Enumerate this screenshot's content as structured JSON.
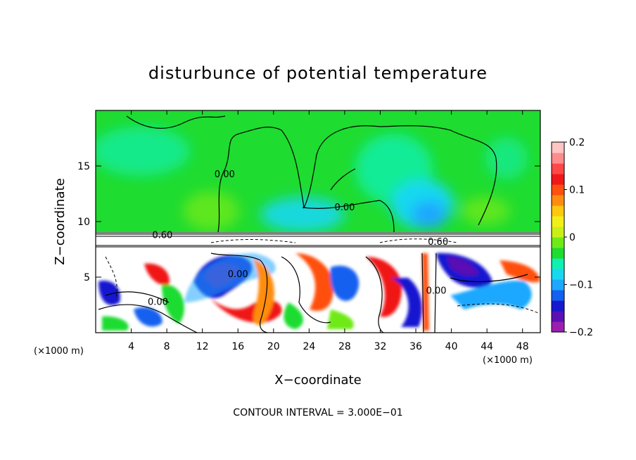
{
  "chart_data": {
    "type": "heatmap",
    "title": "disturbunce of potential temperature",
    "xlabel": "X−coordinate",
    "ylabel": "Z−coordinate",
    "x_unit_label_left": "(×1000 m)",
    "x_unit_label_right": "(×1000 m)",
    "xlim": [
      0,
      50
    ],
    "ylim": [
      0,
      20
    ],
    "x_ticks": [
      4,
      8,
      12,
      16,
      20,
      24,
      28,
      32,
      36,
      40,
      44,
      48
    ],
    "y_ticks": [
      5,
      10,
      15
    ],
    "colorbar": {
      "range": [
        -0.2,
        0.2
      ],
      "ticks": [
        {
          "value": 0.2,
          "label": "0.2"
        },
        {
          "value": 0.1,
          "label": "0.1"
        },
        {
          "value": 0.0,
          "label": "0"
        },
        {
          "value": -0.1,
          "label": "−0.1"
        },
        {
          "value": -0.2,
          "label": "−0.2"
        }
      ],
      "colors": [
        "#9a1fb0",
        "#5a10b4",
        "#1818d0",
        "#1460f0",
        "#1ea8ff",
        "#18d8f0",
        "#10f0b0",
        "#1edc30",
        "#6eea18",
        "#c8f018",
        "#f0f018",
        "#ffc810",
        "#ff8c10",
        "#ff5010",
        "#f01818",
        "#ff4848",
        "#ff8c8c",
        "#ffc4c4"
      ]
    },
    "contour_labels": [
      {
        "text": "0.00",
        "x": 14.5,
        "y": 14.0
      },
      {
        "text": "0.00",
        "x": 28.0,
        "y": 11.0
      },
      {
        "text": "0.60",
        "x": 7.5,
        "y": 8.5
      },
      {
        "text": "0.60",
        "x": 38.5,
        "y": 7.9
      },
      {
        "text": "0.00",
        "x": 16.0,
        "y": 5.0
      },
      {
        "text": "0.00",
        "x": 7.0,
        "y": 2.5
      },
      {
        "text": "0.00",
        "x": 38.3,
        "y": 3.5
      }
    ],
    "contour_interval_text": "CONTOUR INTERVAL = 3.000E−01"
  }
}
